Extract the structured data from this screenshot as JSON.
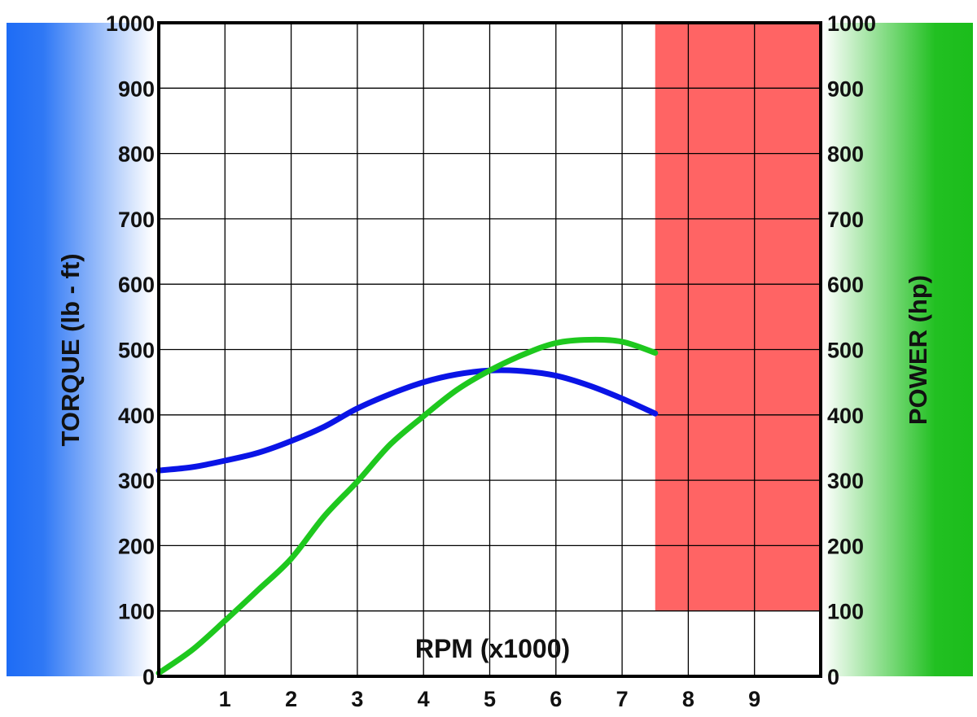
{
  "chart_data": {
    "type": "line",
    "x_label": "RPM  (x1000)",
    "y_left_label": "TORQUE  (lb - ft)",
    "y_right_label": "POWER   (hp)",
    "x_range": [
      0,
      10
    ],
    "x_ticks": [
      "1",
      "2",
      "3",
      "4",
      "5",
      "6",
      "7",
      "8",
      "9"
    ],
    "y_range": [
      0,
      1000
    ],
    "y_ticks": [
      "0",
      "100",
      "200",
      "300",
      "400",
      "500",
      "600",
      "700",
      "800",
      "900",
      "1000"
    ],
    "grid": true,
    "redline": {
      "x_start": 7.5,
      "x_end": 10,
      "y_start": 100,
      "y_end": 1000,
      "color": "#ff6464"
    },
    "left_band_color": "#1e6cf5",
    "right_band_color": "#1bbd1b",
    "series": [
      {
        "axis": "left",
        "color": "#0a14e6",
        "x": [
          0,
          0.5,
          1,
          1.5,
          2,
          2.5,
          3,
          3.5,
          4,
          4.5,
          5,
          5.5,
          6,
          6.5,
          7,
          7.5
        ],
        "y": [
          315,
          320,
          330,
          342,
          360,
          382,
          410,
          432,
          450,
          462,
          468,
          467,
          460,
          445,
          425,
          402
        ]
      },
      {
        "axis": "right",
        "color": "#1ec81e",
        "x": [
          0,
          0.5,
          1,
          1.5,
          2,
          2.5,
          3,
          3.5,
          4,
          4.5,
          5,
          5.5,
          6,
          6.5,
          7,
          7.5
        ],
        "y": [
          5,
          40,
          85,
          132,
          180,
          245,
          298,
          355,
          398,
          438,
          468,
          492,
          510,
          515,
          512,
          495
        ]
      }
    ]
  }
}
